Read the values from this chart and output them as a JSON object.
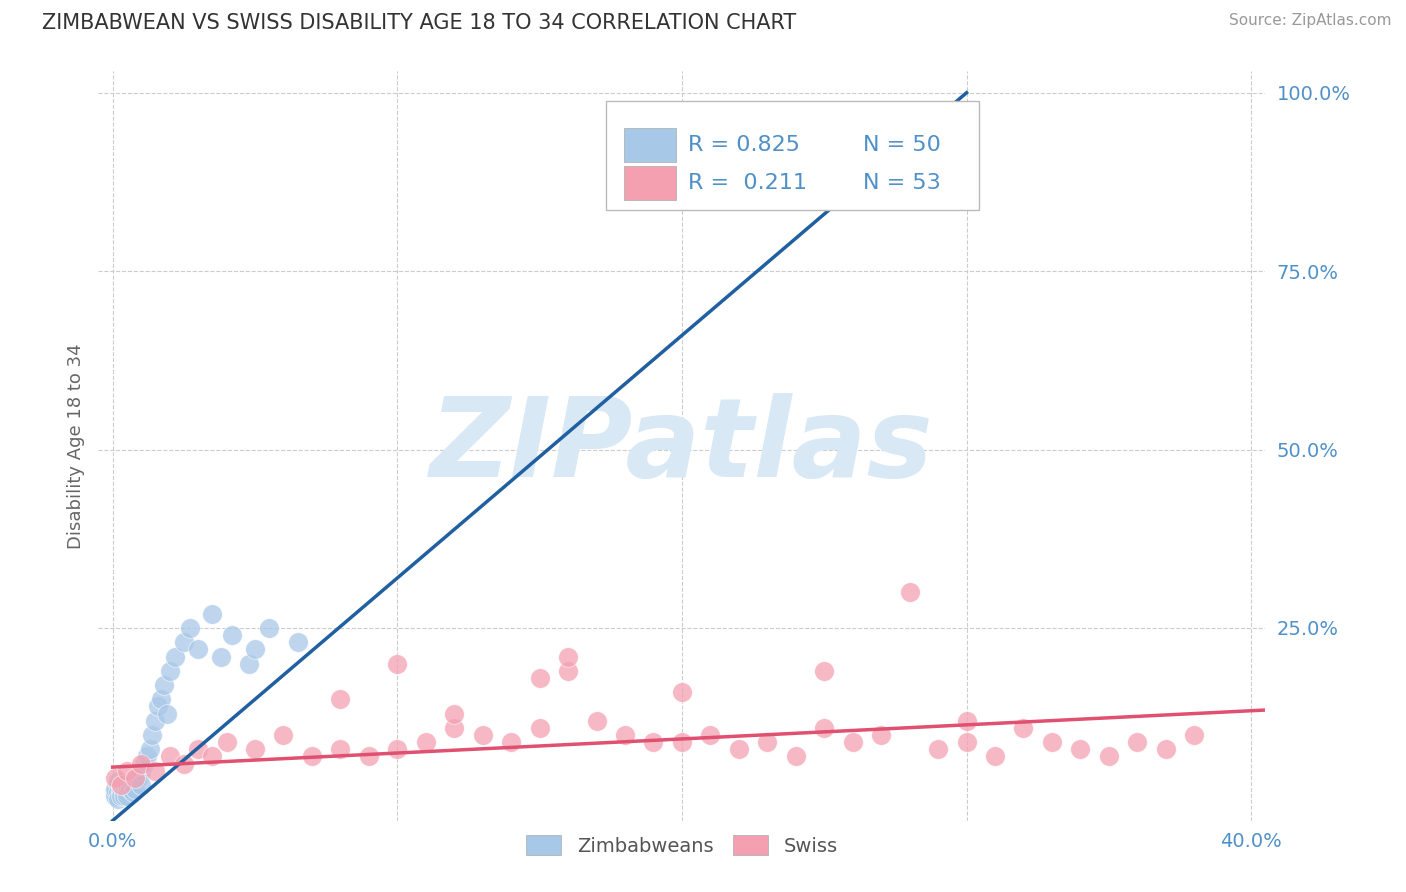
{
  "title": "ZIMBABWEAN VS SWISS DISABILITY AGE 18 TO 34 CORRELATION CHART",
  "source_text": "Source: ZipAtlas.com",
  "ylabel": "Disability Age 18 to 34",
  "xlim": [
    -0.005,
    0.405
  ],
  "ylim": [
    -0.02,
    1.03
  ],
  "xtick_positions": [
    0.0,
    0.4
  ],
  "xtick_labels": [
    "0.0%",
    "40.0%"
  ],
  "ytick_positions": [
    0.25,
    0.5,
    0.75,
    1.0
  ],
  "ytick_labels": [
    "25.0%",
    "50.0%",
    "75.0%",
    "100.0%"
  ],
  "blue_color": "#a8c8e8",
  "pink_color": "#f4a0b0",
  "blue_line_color": "#2060a0",
  "pink_line_color": "#e05070",
  "R_blue": 0.825,
  "N_blue": 50,
  "R_pink": 0.211,
  "N_pink": 53,
  "background_color": "#ffffff",
  "grid_color": "#cccccc",
  "watermark_text": "ZIPatlas",
  "watermark_color": "#d8e8f4",
  "title_color": "#333333",
  "axis_label_color": "#5090c8",
  "blue_x": [
    0.001,
    0.001,
    0.001,
    0.002,
    0.002,
    0.002,
    0.002,
    0.003,
    0.003,
    0.003,
    0.003,
    0.004,
    0.004,
    0.004,
    0.004,
    0.005,
    0.005,
    0.005,
    0.005,
    0.006,
    0.006,
    0.007,
    0.007,
    0.008,
    0.008,
    0.009,
    0.01,
    0.01,
    0.011,
    0.012,
    0.013,
    0.014,
    0.015,
    0.016,
    0.017,
    0.018,
    0.019,
    0.02,
    0.022,
    0.025,
    0.027,
    0.03,
    0.035,
    0.038,
    0.042,
    0.048,
    0.05,
    0.055,
    0.065,
    0.3
  ],
  "blue_y": [
    0.02,
    0.015,
    0.025,
    0.03,
    0.02,
    0.01,
    0.035,
    0.02,
    0.025,
    0.015,
    0.03,
    0.025,
    0.02,
    0.03,
    0.015,
    0.025,
    0.02,
    0.03,
    0.015,
    0.03,
    0.025,
    0.03,
    0.02,
    0.035,
    0.025,
    0.04,
    0.05,
    0.03,
    0.06,
    0.07,
    0.08,
    0.1,
    0.12,
    0.14,
    0.15,
    0.17,
    0.13,
    0.19,
    0.21,
    0.23,
    0.25,
    0.22,
    0.27,
    0.21,
    0.24,
    0.2,
    0.22,
    0.25,
    0.23,
    0.97
  ],
  "pink_x": [
    0.001,
    0.003,
    0.005,
    0.008,
    0.01,
    0.015,
    0.02,
    0.025,
    0.03,
    0.035,
    0.04,
    0.05,
    0.06,
    0.07,
    0.08,
    0.09,
    0.1,
    0.11,
    0.12,
    0.13,
    0.14,
    0.15,
    0.16,
    0.17,
    0.18,
    0.19,
    0.2,
    0.21,
    0.22,
    0.23,
    0.24,
    0.25,
    0.26,
    0.27,
    0.28,
    0.29,
    0.3,
    0.31,
    0.32,
    0.33,
    0.34,
    0.35,
    0.36,
    0.37,
    0.38,
    0.1,
    0.15,
    0.2,
    0.25,
    0.08,
    0.12,
    0.16,
    0.3
  ],
  "pink_y": [
    0.04,
    0.03,
    0.05,
    0.04,
    0.06,
    0.05,
    0.07,
    0.06,
    0.08,
    0.07,
    0.09,
    0.08,
    0.1,
    0.07,
    0.08,
    0.07,
    0.08,
    0.09,
    0.11,
    0.1,
    0.09,
    0.11,
    0.19,
    0.12,
    0.1,
    0.09,
    0.09,
    0.1,
    0.08,
    0.09,
    0.07,
    0.11,
    0.09,
    0.1,
    0.3,
    0.08,
    0.09,
    0.07,
    0.11,
    0.09,
    0.08,
    0.07,
    0.09,
    0.08,
    0.1,
    0.2,
    0.18,
    0.16,
    0.19,
    0.15,
    0.13,
    0.21,
    0.12
  ],
  "legend_R_blue_text": "R = 0.825",
  "legend_N_blue_text": "N = 50",
  "legend_R_pink_text": "R =  0.211",
  "legend_N_pink_text": "N = 53"
}
